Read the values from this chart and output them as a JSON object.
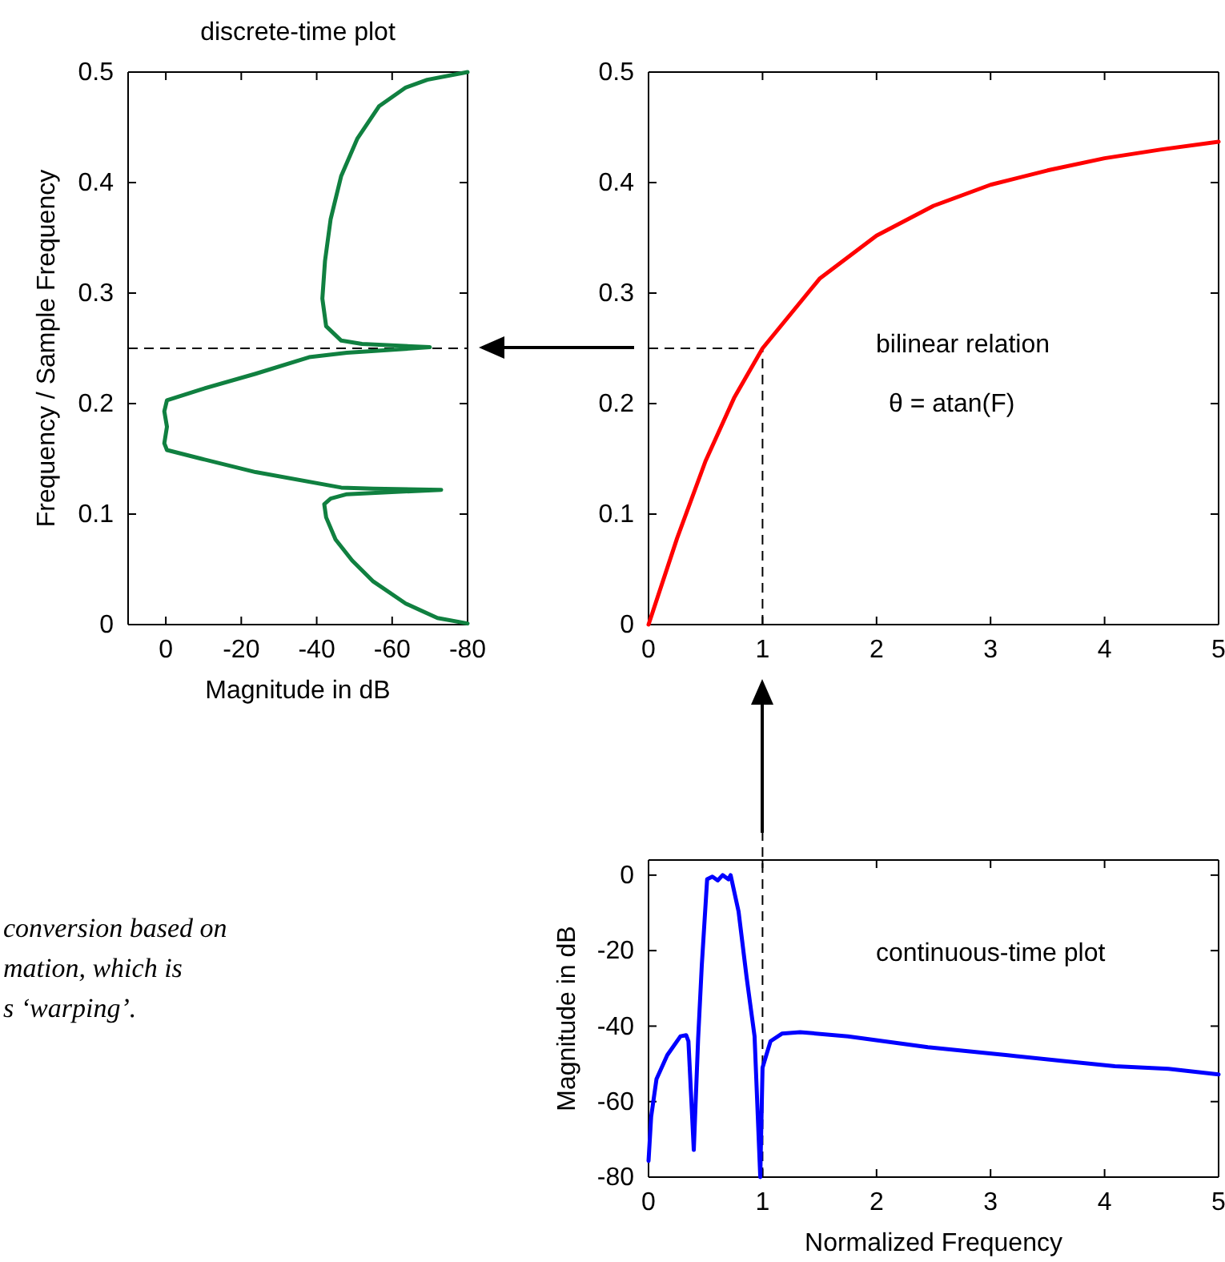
{
  "chart_data": [
    {
      "type": "line",
      "title": "discrete-time plot",
      "xlabel": "Magnitude in dB",
      "ylabel": "Frequency / Sample Frequency",
      "xlim": [
        10,
        -80
      ],
      "xticks": [
        0,
        -20,
        -40,
        -60,
        -80
      ],
      "ylim": [
        0,
        0.5
      ],
      "yticks": [
        0,
        0.1,
        0.2,
        0.3,
        0.4,
        0.5
      ],
      "grid": false,
      "ref_lines": [
        {
          "axis": "y",
          "value": 0.25,
          "line_style": "dashed",
          "color": "#000000"
        }
      ],
      "series": [
        {
          "color": "#108040",
          "x": [
            -80,
            -72,
            -63.6,
            -55,
            -49.4,
            -45,
            -42.5,
            -42,
            -43.7,
            -48,
            -73,
            -55,
            -46.5,
            -23.8,
            -9.5,
            -0.3,
            0.4,
            -0.3,
            0.4,
            -0.3,
            -9.5,
            -23.8,
            -38,
            -48,
            -70,
            -52,
            -46.5,
            -42.5,
            -41.5,
            -42.2,
            -43.7,
            -46.5,
            -50.8,
            -56.5,
            -63.6,
            -69.3,
            -80
          ],
          "values": [
            0.001,
            0.006,
            0.019,
            0.039,
            0.058,
            0.077,
            0.097,
            0.109,
            0.114,
            0.118,
            0.122,
            0.123,
            0.124,
            0.138,
            0.15,
            0.158,
            0.164,
            0.179,
            0.193,
            0.203,
            0.213,
            0.227,
            0.242,
            0.246,
            0.251,
            0.254,
            0.257,
            0.27,
            0.295,
            0.329,
            0.367,
            0.406,
            0.44,
            0.469,
            0.486,
            0.493,
            0.5
          ]
        }
      ]
    },
    {
      "type": "line",
      "xlim": [
        0,
        5
      ],
      "xticks": [
        0,
        1,
        2,
        3,
        4,
        5
      ],
      "ylim": [
        0,
        0.5
      ],
      "yticks": [
        0,
        0.1,
        0.2,
        0.3,
        0.4,
        0.5
      ],
      "grid": false,
      "annotations": [
        "bilinear relation",
        "θ = atan(F)"
      ],
      "ref_lines": [
        {
          "axis": "y",
          "value": 0.25,
          "line_style": "dashed",
          "color": "#000000"
        },
        {
          "axis": "x",
          "value": 1,
          "line_style": "dashed",
          "color": "#000000"
        }
      ],
      "series": [
        {
          "color": "#ff0000",
          "x": [
            0,
            0.25,
            0.5,
            0.75,
            1,
            1.5,
            2,
            2.5,
            3,
            3.5,
            4,
            4.5,
            5
          ],
          "values": [
            0,
            0.078,
            0.148,
            0.205,
            0.25,
            0.313,
            0.352,
            0.379,
            0.398,
            0.411,
            0.422,
            0.43,
            0.437
          ]
        }
      ]
    },
    {
      "type": "line",
      "xlabel": "Normalized Frequency",
      "ylabel": "Magnitude in dB",
      "xlim": [
        0,
        5
      ],
      "xticks": [
        0,
        1,
        2,
        3,
        4,
        5
      ],
      "ylim": [
        -80,
        4
      ],
      "yticks": [
        -80,
        -60,
        -40,
        -20,
        0
      ],
      "grid": false,
      "annotations": [
        "continuous-time plot"
      ],
      "ref_lines": [
        {
          "axis": "x",
          "value": 1,
          "line_style": "dashed",
          "color": "#000000"
        }
      ],
      "series": [
        {
          "color": "#0000ff",
          "x": [
            0,
            0.023,
            0.07,
            0.164,
            0.28,
            0.33,
            0.35,
            0.397,
            0.435,
            0.467,
            0.514,
            0.56,
            0.607,
            0.65,
            0.7,
            0.72,
            0.79,
            0.86,
            0.93,
            0.98,
            1.0,
            1.07,
            1.17,
            1.33,
            1.75,
            2.45,
            3.15,
            3.62,
            4.09,
            4.56,
            5.0
          ],
          "values": [
            -75.7,
            -64,
            -54,
            -47.7,
            -42.7,
            -42.4,
            -44,
            -72.8,
            -43.4,
            -24,
            -1.1,
            -0.4,
            -1.4,
            0,
            -1.1,
            0,
            -9.7,
            -27,
            -42.7,
            -80,
            -51,
            -44,
            -42,
            -41.6,
            -42.7,
            -45.6,
            -47.7,
            -49.2,
            -50.6,
            -51.3,
            -52.8
          ]
        }
      ]
    },
    {
      "type": "other",
      "annotations": [
        "conversion based on",
        "mation, which is",
        "s ‘warping’."
      ]
    }
  ]
}
